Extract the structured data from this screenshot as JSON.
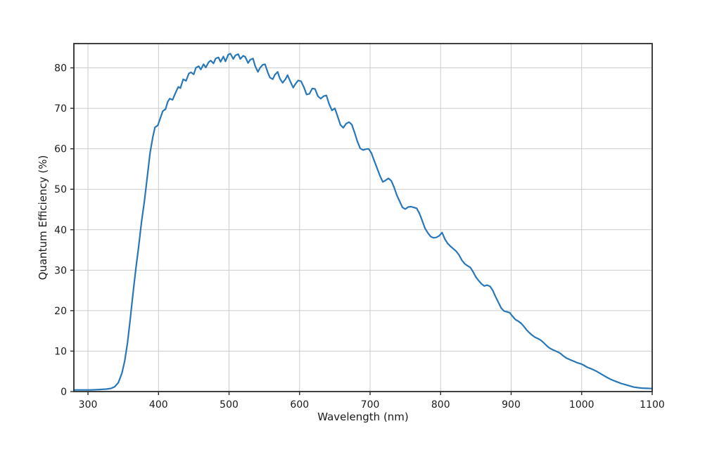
{
  "chart_data": {
    "type": "line",
    "title": "",
    "xlabel": "Wavelength (nm)",
    "ylabel": "Quantum Efficiency (%)",
    "xlim": [
      280,
      1100
    ],
    "ylim": [
      0,
      86
    ],
    "xticks": [
      300,
      400,
      500,
      600,
      700,
      800,
      900,
      1000,
      1100
    ],
    "yticks": [
      0,
      10,
      20,
      30,
      40,
      50,
      60,
      70,
      80
    ],
    "grid": true,
    "legend": "none",
    "series": [
      {
        "name": "Quantum Efficiency",
        "color": "#2878b9",
        "points": [
          [
            280,
            0.4
          ],
          [
            292,
            0.4
          ],
          [
            304,
            0.4
          ],
          [
            316,
            0.5
          ],
          [
            326,
            0.6
          ],
          [
            333,
            0.8
          ],
          [
            338,
            1.2
          ],
          [
            343,
            2.2
          ],
          [
            348,
            4.5
          ],
          [
            352,
            7.5
          ],
          [
            356,
            12
          ],
          [
            360,
            18
          ],
          [
            364,
            24.5
          ],
          [
            368,
            30.5
          ],
          [
            372,
            36
          ],
          [
            376,
            42
          ],
          [
            380,
            47
          ],
          [
            384,
            53
          ],
          [
            388,
            59
          ],
          [
            392,
            63
          ],
          [
            395,
            65.3
          ],
          [
            399,
            65.8
          ],
          [
            403,
            67.8
          ],
          [
            406,
            69.3
          ],
          [
            410,
            69.8
          ],
          [
            413,
            71.6
          ],
          [
            416,
            72.4
          ],
          [
            420,
            72.1
          ],
          [
            424,
            73.8
          ],
          [
            428,
            75.3
          ],
          [
            431,
            75.0
          ],
          [
            435,
            77.2
          ],
          [
            439,
            76.8
          ],
          [
            443,
            78.6
          ],
          [
            446,
            78.9
          ],
          [
            450,
            78.4
          ],
          [
            453,
            80.0
          ],
          [
            457,
            80.4
          ],
          [
            460,
            79.6
          ],
          [
            464,
            80.9
          ],
          [
            467,
            80.1
          ],
          [
            471,
            81.4
          ],
          [
            474,
            81.8
          ],
          [
            478,
            81.1
          ],
          [
            481,
            82.3
          ],
          [
            485,
            82.6
          ],
          [
            488,
            81.5
          ],
          [
            492,
            82.8
          ],
          [
            495,
            81.6
          ],
          [
            499,
            83.3
          ],
          [
            502,
            83.5
          ],
          [
            506,
            82.2
          ],
          [
            509,
            83.1
          ],
          [
            513,
            83.4
          ],
          [
            516,
            82.2
          ],
          [
            520,
            83.0
          ],
          [
            523,
            82.7
          ],
          [
            527,
            81.2
          ],
          [
            530,
            82.0
          ],
          [
            534,
            82.3
          ],
          [
            537,
            80.5
          ],
          [
            541,
            79.0
          ],
          [
            544,
            80.0
          ],
          [
            548,
            80.8
          ],
          [
            551,
            80.9
          ],
          [
            555,
            78.8
          ],
          [
            558,
            77.6
          ],
          [
            562,
            77.2
          ],
          [
            565,
            78.3
          ],
          [
            569,
            79.0
          ],
          [
            572,
            77.4
          ],
          [
            576,
            76.3
          ],
          [
            580,
            77.2
          ],
          [
            583,
            78.2
          ],
          [
            587,
            76.6
          ],
          [
            591,
            75.1
          ],
          [
            594,
            76.0
          ],
          [
            598,
            76.9
          ],
          [
            602,
            76.7
          ],
          [
            606,
            75.3
          ],
          [
            610,
            73.4
          ],
          [
            614,
            73.6
          ],
          [
            618,
            74.9
          ],
          [
            622,
            74.8
          ],
          [
            626,
            73.0
          ],
          [
            630,
            72.4
          ],
          [
            634,
            73.0
          ],
          [
            638,
            73.2
          ],
          [
            642,
            71.0
          ],
          [
            646,
            69.5
          ],
          [
            650,
            70.0
          ],
          [
            654,
            68.0
          ],
          [
            658,
            65.9
          ],
          [
            662,
            65.2
          ],
          [
            666,
            66.2
          ],
          [
            670,
            66.6
          ],
          [
            674,
            66.0
          ],
          [
            678,
            64.0
          ],
          [
            682,
            61.8
          ],
          [
            686,
            60.1
          ],
          [
            690,
            59.7
          ],
          [
            694,
            59.9
          ],
          [
            698,
            60.0
          ],
          [
            702,
            58.9
          ],
          [
            706,
            57.0
          ],
          [
            710,
            55.2
          ],
          [
            714,
            53.3
          ],
          [
            718,
            51.8
          ],
          [
            722,
            52.2
          ],
          [
            726,
            52.7
          ],
          [
            730,
            52.1
          ],
          [
            734,
            50.5
          ],
          [
            738,
            48.5
          ],
          [
            742,
            47.0
          ],
          [
            746,
            45.5
          ],
          [
            750,
            45.1
          ],
          [
            754,
            45.6
          ],
          [
            758,
            45.7
          ],
          [
            762,
            45.5
          ],
          [
            766,
            45.3
          ],
          [
            770,
            44.0
          ],
          [
            774,
            42.2
          ],
          [
            778,
            40.3
          ],
          [
            782,
            39.2
          ],
          [
            786,
            38.3
          ],
          [
            790,
            38.0
          ],
          [
            794,
            38.1
          ],
          [
            798,
            38.5
          ],
          [
            802,
            39.3
          ],
          [
            806,
            37.7
          ],
          [
            810,
            36.6
          ],
          [
            814,
            35.9
          ],
          [
            818,
            35.3
          ],
          [
            822,
            34.7
          ],
          [
            826,
            33.8
          ],
          [
            830,
            32.5
          ],
          [
            834,
            31.6
          ],
          [
            838,
            31.1
          ],
          [
            842,
            30.7
          ],
          [
            846,
            29.6
          ],
          [
            850,
            28.3
          ],
          [
            854,
            27.4
          ],
          [
            858,
            26.6
          ],
          [
            862,
            26.1
          ],
          [
            866,
            26.3
          ],
          [
            870,
            26.0
          ],
          [
            874,
            25.0
          ],
          [
            878,
            23.4
          ],
          [
            882,
            22.0
          ],
          [
            886,
            20.6
          ],
          [
            890,
            19.9
          ],
          [
            894,
            19.7
          ],
          [
            898,
            19.5
          ],
          [
            902,
            18.6
          ],
          [
            906,
            17.8
          ],
          [
            910,
            17.4
          ],
          [
            914,
            16.9
          ],
          [
            918,
            16.1
          ],
          [
            922,
            15.2
          ],
          [
            926,
            14.5
          ],
          [
            930,
            13.9
          ],
          [
            934,
            13.4
          ],
          [
            938,
            13.1
          ],
          [
            942,
            12.7
          ],
          [
            946,
            12.1
          ],
          [
            950,
            11.4
          ],
          [
            954,
            10.8
          ],
          [
            958,
            10.4
          ],
          [
            962,
            10.1
          ],
          [
            966,
            9.8
          ],
          [
            970,
            9.4
          ],
          [
            974,
            8.8
          ],
          [
            978,
            8.3
          ],
          [
            982,
            8.0
          ],
          [
            986,
            7.7
          ],
          [
            990,
            7.4
          ],
          [
            994,
            7.1
          ],
          [
            998,
            6.9
          ],
          [
            1002,
            6.6
          ],
          [
            1008,
            6.0
          ],
          [
            1014,
            5.6
          ],
          [
            1020,
            5.1
          ],
          [
            1026,
            4.5
          ],
          [
            1032,
            3.9
          ],
          [
            1038,
            3.3
          ],
          [
            1044,
            2.8
          ],
          [
            1050,
            2.4
          ],
          [
            1056,
            2.0
          ],
          [
            1062,
            1.7
          ],
          [
            1068,
            1.4
          ],
          [
            1074,
            1.1
          ],
          [
            1080,
            0.95
          ],
          [
            1086,
            0.85
          ],
          [
            1092,
            0.8
          ],
          [
            1100,
            0.75
          ]
        ]
      }
    ]
  },
  "colors": {
    "background": "#ffffff",
    "grid": "#cccccc",
    "spine": "#2b2b2b",
    "tick_text": "#1a1a1a",
    "line": "#2878b9"
  }
}
